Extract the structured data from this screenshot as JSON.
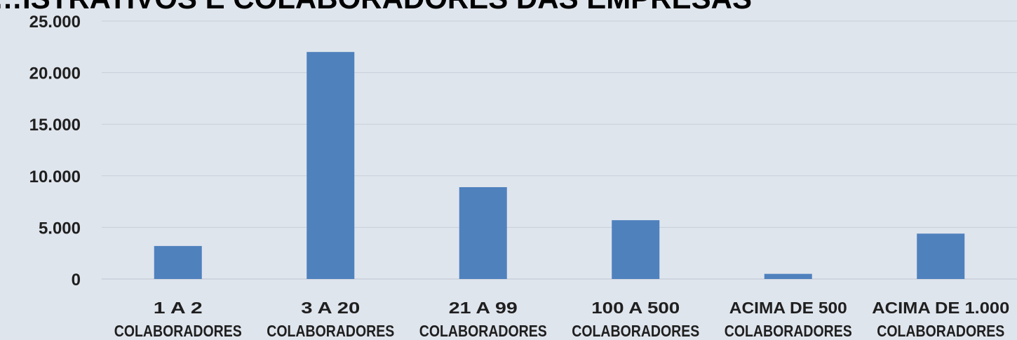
{
  "chart_data": {
    "type": "bar",
    "title": "…ISTRATIVOS E COLABORADORES DAS EMPRESAS",
    "categories": [
      [
        "1 A 2",
        "COLABORADORES"
      ],
      [
        "3 A 20",
        "COLABORADORES"
      ],
      [
        "21 A 99",
        "COLABORADORES"
      ],
      [
        "100 A 500",
        "COLABORADORES"
      ],
      [
        "ACIMA DE 500",
        "COLABORADORES"
      ],
      [
        "ACIMA DE 1.000",
        "COLABORADORES"
      ]
    ],
    "series": [
      {
        "values": [
          3200,
          22000,
          8900,
          5700,
          500,
          4400
        ]
      }
    ],
    "ylim": [
      0,
      25000
    ],
    "yticks": [
      0,
      5000,
      10000,
      15000,
      20000,
      25000
    ],
    "ytick_labels": [
      "0",
      "5.000",
      "10.000",
      "15.000",
      "20.000",
      "25.000"
    ],
    "xlabel": "",
    "ylabel": "",
    "grid": true,
    "legend": "none",
    "colors": {
      "bar": "#4f81bd",
      "background": "#dfe5ed"
    }
  }
}
